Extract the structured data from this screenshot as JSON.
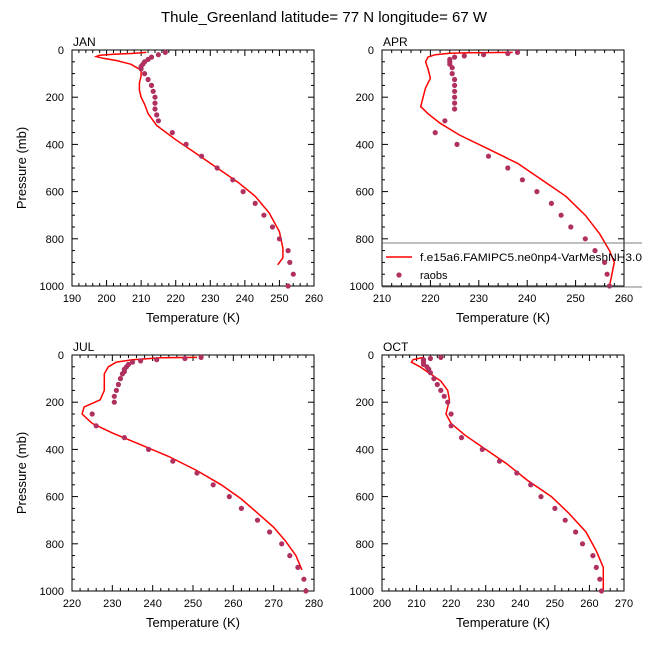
{
  "figure": {
    "title": "Thule_Greenland  latitude= 77 N longitude= 67 W"
  },
  "legend": {
    "model_label": "f.e15a6.FAMIPC5.ne0np4-VarMeshNH3.0",
    "obs_label": "raobs",
    "placement": "right-middle, lower portion of APR panel"
  },
  "colors": {
    "model_line": "#ff0000",
    "obs_marker": "#b03060",
    "axis": "#000000"
  },
  "chart_data": [
    {
      "type": "scatter",
      "panel_label": "JAN",
      "xlabel": "Temperature (K)",
      "ylabel": "Pressure (mb)",
      "xlim": [
        190,
        260
      ],
      "ylim": [
        1000,
        0
      ],
      "x_ticks": [
        190,
        200,
        210,
        220,
        230,
        240,
        250,
        260
      ],
      "y_ticks": [
        0,
        200,
        400,
        600,
        800,
        1000
      ],
      "series": [
        {
          "kind": "line",
          "points": [
            [
              211.5,
              10
            ],
            [
              210,
              12
            ],
            [
              207,
              15
            ],
            [
              202,
              18
            ],
            [
              198,
              22
            ],
            [
              197,
              28
            ],
            [
              199,
              35
            ],
            [
              203,
              45
            ],
            [
              207,
              60
            ],
            [
              210,
              85
            ],
            [
              210,
              110
            ],
            [
              209.5,
              140
            ],
            [
              209.5,
              170
            ],
            [
              210,
              200
            ],
            [
              211,
              230
            ],
            [
              212,
              270
            ],
            [
              214.5,
              320
            ],
            [
              220,
              380
            ],
            [
              226,
              440
            ],
            [
              232,
              500
            ],
            [
              238,
              560
            ],
            [
              243,
              620
            ],
            [
              247,
              690
            ],
            [
              250,
              770
            ],
            [
              251,
              840
            ],
            [
              251,
              880
            ],
            [
              249.5,
              910
            ]
          ]
        },
        {
          "kind": "scatter",
          "points": [
            [
              217,
              10
            ],
            [
              215,
              20
            ],
            [
              213,
              30
            ],
            [
              212,
              40
            ],
            [
              211,
              50
            ],
            [
              210.5,
              60
            ],
            [
              210,
              70
            ],
            [
              210,
              80
            ],
            [
              211,
              100
            ],
            [
              212,
              125
            ],
            [
              213,
              150
            ],
            [
              213.5,
              175
            ],
            [
              214,
              200
            ],
            [
              214,
              225
            ],
            [
              214,
              250
            ],
            [
              214.5,
              275
            ],
            [
              215,
              300
            ],
            [
              219,
              350
            ],
            [
              223,
              400
            ],
            [
              227.5,
              450
            ],
            [
              232,
              500
            ],
            [
              236.5,
              550
            ],
            [
              239.5,
              600
            ],
            [
              243,
              650
            ],
            [
              245.5,
              700
            ],
            [
              248,
              750
            ],
            [
              250,
              800
            ],
            [
              252.5,
              850
            ],
            [
              253,
              900
            ],
            [
              254,
              950
            ],
            [
              252.5,
              1000
            ]
          ]
        }
      ]
    },
    {
      "type": "scatter",
      "panel_label": "APR",
      "xlabel": "Temperature (K)",
      "ylabel": "",
      "xlim": [
        210,
        260
      ],
      "ylim": [
        1000,
        0
      ],
      "x_ticks": [
        210,
        220,
        230,
        240,
        250,
        260
      ],
      "y_ticks": [
        0,
        200,
        400,
        600,
        800,
        1000
      ],
      "series": [
        {
          "kind": "line",
          "points": [
            [
              237,
              10
            ],
            [
              232,
              11
            ],
            [
              228,
              12
            ],
            [
              224,
              14
            ],
            [
              221,
              20
            ],
            [
              219.5,
              30
            ],
            [
              219,
              50
            ],
            [
              219.5,
              80
            ],
            [
              220,
              120
            ],
            [
              219,
              160
            ],
            [
              218.5,
              200
            ],
            [
              218,
              240
            ],
            [
              219.5,
              270
            ],
            [
              222,
              310
            ],
            [
              226,
              360
            ],
            [
              232,
              420
            ],
            [
              238,
              480
            ],
            [
              243,
              550
            ],
            [
              248,
              620
            ],
            [
              252,
              700
            ],
            [
              255,
              780
            ],
            [
              257,
              850
            ],
            [
              258,
              900
            ],
            [
              257.5,
              950
            ],
            [
              257,
              1000
            ]
          ]
        },
        {
          "kind": "scatter",
          "points": [
            [
              238,
              10
            ],
            [
              236,
              15
            ],
            [
              231,
              20
            ],
            [
              227,
              25
            ],
            [
              225,
              30
            ],
            [
              224,
              40
            ],
            [
              224,
              50
            ],
            [
              224,
              60
            ],
            [
              224.5,
              75
            ],
            [
              224.5,
              100
            ],
            [
              225,
              125
            ],
            [
              225,
              150
            ],
            [
              225,
              175
            ],
            [
              225,
              200
            ],
            [
              225,
              225
            ],
            [
              225,
              250
            ],
            [
              223,
              300
            ],
            [
              221,
              350
            ],
            [
              225.5,
              400
            ],
            [
              232,
              450
            ],
            [
              236,
              500
            ],
            [
              239,
              550
            ],
            [
              242,
              600
            ],
            [
              245,
              650
            ],
            [
              247,
              700
            ],
            [
              249,
              750
            ],
            [
              252,
              800
            ],
            [
              254,
              850
            ],
            [
              256,
              900
            ],
            [
              256.5,
              950
            ],
            [
              257,
              1000
            ]
          ]
        }
      ]
    },
    {
      "type": "scatter",
      "panel_label": "JUL",
      "xlabel": "Temperature (K)",
      "ylabel": "Pressure (mb)",
      "xlim": [
        220,
        280
      ],
      "ylim": [
        1000,
        0
      ],
      "x_ticks": [
        220,
        230,
        240,
        250,
        260,
        270,
        280
      ],
      "y_ticks": [
        0,
        200,
        400,
        600,
        800,
        1000
      ],
      "series": [
        {
          "kind": "line",
          "points": [
            [
              251,
              10
            ],
            [
              242,
              12
            ],
            [
              235,
              20
            ],
            [
              231,
              30
            ],
            [
              229,
              50
            ],
            [
              228,
              80
            ],
            [
              228,
              150
            ],
            [
              227,
              190
            ],
            [
              225,
              205
            ],
            [
              223,
              220
            ],
            [
              222.5,
              250
            ],
            [
              225,
              290
            ],
            [
              230,
              330
            ],
            [
              237,
              380
            ],
            [
              244,
              430
            ],
            [
              251,
              490
            ],
            [
              257,
              550
            ],
            [
              262,
              610
            ],
            [
              266,
              670
            ],
            [
              270,
              730
            ],
            [
              273,
              790
            ],
            [
              275.5,
              850
            ],
            [
              277,
              910
            ]
          ]
        },
        {
          "kind": "scatter",
          "points": [
            [
              252,
              10
            ],
            [
              248,
              15
            ],
            [
              241,
              20
            ],
            [
              237,
              25
            ],
            [
              235,
              30
            ],
            [
              234,
              40
            ],
            [
              233.5,
              50
            ],
            [
              233,
              60
            ],
            [
              233,
              70
            ],
            [
              232.5,
              80
            ],
            [
              232,
              100
            ],
            [
              231.5,
              125
            ],
            [
              231,
              150
            ],
            [
              230.5,
              175
            ],
            [
              230.5,
              200
            ],
            [
              225,
              250
            ],
            [
              226,
              300
            ],
            [
              233,
              350
            ],
            [
              239,
              400
            ],
            [
              245,
              450
            ],
            [
              251,
              500
            ],
            [
              255,
              550
            ],
            [
              259,
              600
            ],
            [
              262,
              650
            ],
            [
              266,
              700
            ],
            [
              269,
              750
            ],
            [
              272,
              800
            ],
            [
              274,
              850
            ],
            [
              276,
              900
            ],
            [
              277.5,
              950
            ],
            [
              278,
              1000
            ]
          ]
        }
      ]
    },
    {
      "type": "scatter",
      "panel_label": "OCT",
      "xlabel": "Temperature (K)",
      "ylabel": "",
      "xlim": [
        200,
        270
      ],
      "ylim": [
        1000,
        0
      ],
      "x_ticks": [
        200,
        210,
        220,
        230,
        240,
        250,
        260,
        270
      ],
      "y_ticks": [
        0,
        200,
        400,
        600,
        800,
        1000
      ],
      "series": [
        {
          "kind": "line",
          "points": [
            [
              212,
              10
            ],
            [
              209,
              20
            ],
            [
              208.5,
              30
            ],
            [
              211,
              50
            ],
            [
              214,
              80
            ],
            [
              217,
              110
            ],
            [
              219,
              150
            ],
            [
              219.5,
              190
            ],
            [
              219,
              220
            ],
            [
              218.5,
              250
            ],
            [
              220,
              290
            ],
            [
              224,
              340
            ],
            [
              230,
              400
            ],
            [
              236,
              460
            ],
            [
              242,
              530
            ],
            [
              249,
              600
            ],
            [
              254,
              670
            ],
            [
              259,
              750
            ],
            [
              262,
              830
            ],
            [
              264,
              900
            ],
            [
              264,
              950
            ],
            [
              264,
              1000
            ]
          ]
        },
        {
          "kind": "scatter",
          "points": [
            [
              217,
              10
            ],
            [
              214,
              15
            ],
            [
              212,
              20
            ],
            [
              212,
              25
            ],
            [
              212,
              30
            ],
            [
              212,
              40
            ],
            [
              213,
              50
            ],
            [
              213.5,
              60
            ],
            [
              214,
              75
            ],
            [
              215,
              100
            ],
            [
              216,
              125
            ],
            [
              217,
              150
            ],
            [
              218,
              175
            ],
            [
              219,
              200
            ],
            [
              220,
              250
            ],
            [
              220,
              300
            ],
            [
              223,
              350
            ],
            [
              229,
              400
            ],
            [
              234,
              450
            ],
            [
              239,
              500
            ],
            [
              243,
              550
            ],
            [
              246,
              600
            ],
            [
              250,
              650
            ],
            [
              253,
              700
            ],
            [
              256,
              750
            ],
            [
              258,
              800
            ],
            [
              261,
              850
            ],
            [
              262,
              900
            ],
            [
              263,
              950
            ],
            [
              263.5,
              1000
            ]
          ]
        }
      ]
    }
  ]
}
